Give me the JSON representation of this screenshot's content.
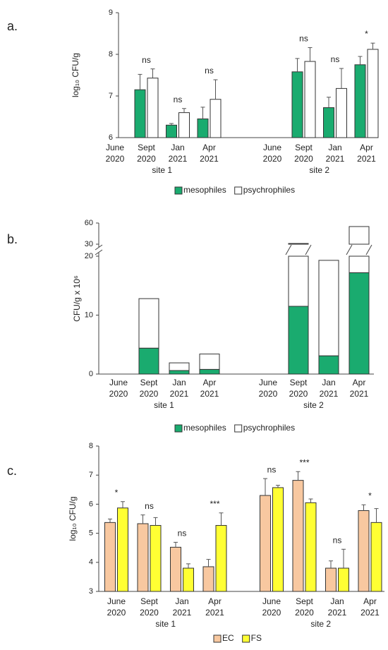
{
  "chart_data": [
    {
      "type": "bar",
      "label": "a.",
      "ylabel": "log₁₀ CFU/g",
      "categories": [
        [
          "June",
          "2020"
        ],
        [
          "Sept",
          "2020"
        ],
        [
          "Jan",
          "2021"
        ],
        [
          "Apr",
          "2021"
        ],
        [
          "June",
          "2020"
        ],
        [
          "Sept",
          "2020"
        ],
        [
          "Jan",
          "2021"
        ],
        [
          "Apr",
          "2021"
        ]
      ],
      "groups": [
        "site 1",
        "site 2"
      ],
      "series": [
        {
          "name": "mesophiles",
          "color": "#1aab6f",
          "values": [
            null,
            7.15,
            6.3,
            6.45,
            null,
            7.58,
            6.72,
            7.75
          ],
          "errors": [
            null,
            0.37,
            0.04,
            0.28,
            null,
            0.32,
            0.25,
            0.2
          ]
        },
        {
          "name": "psychrophiles",
          "color": "#ffffff",
          "values": [
            null,
            7.43,
            6.6,
            6.92,
            null,
            7.83,
            7.18,
            8.12
          ],
          "errors": [
            null,
            0.22,
            0.1,
            0.47,
            null,
            0.33,
            0.48,
            0.15
          ]
        }
      ],
      "annotations": [
        null,
        "ns",
        "ns",
        "ns",
        null,
        "ns",
        "ns",
        "*"
      ],
      "ylim": [
        6,
        9
      ],
      "yticks": [
        6,
        7,
        8,
        9
      ]
    },
    {
      "type": "bar",
      "stacked": true,
      "label": "b.",
      "ylabel": "CFU/g x 10⁶",
      "categories": [
        [
          "June",
          "2020"
        ],
        [
          "Sept",
          "2020"
        ],
        [
          "Jan",
          "2021"
        ],
        [
          "Apr",
          "2021"
        ],
        [
          "June",
          "2020"
        ],
        [
          "Sept",
          "2020"
        ],
        [
          "Jan",
          "2021"
        ],
        [
          "Apr",
          "2021"
        ]
      ],
      "groups": [
        "site 1",
        "site 2"
      ],
      "series": [
        {
          "name": "mesophiles",
          "color": "#1aab6f",
          "values": [
            null,
            4.4,
            0.6,
            0.8,
            null,
            11.5,
            3.1,
            17.2
          ]
        },
        {
          "name": "psychrophiles",
          "color": "#ffffff",
          "values": [
            null,
            8.4,
            1.3,
            2.6,
            null,
            19.5,
            16.2,
            37.8
          ]
        }
      ],
      "ylim": [
        0,
        60
      ],
      "ybreak": [
        20,
        30
      ],
      "yticks": [
        0,
        10,
        20,
        30,
        60
      ]
    },
    {
      "type": "bar",
      "label": "c.",
      "ylabel": "log₁₀ CFU/g",
      "categories": [
        [
          "June",
          "2020"
        ],
        [
          "Sept",
          "2020"
        ],
        [
          "Jan",
          "2021"
        ],
        [
          "Apr",
          "2021"
        ],
        [
          "June",
          "2020"
        ],
        [
          "Sept",
          "2020"
        ],
        [
          "Jan",
          "2021"
        ],
        [
          "Apr",
          "2021"
        ]
      ],
      "groups": [
        "site 1",
        "site 2"
      ],
      "series": [
        {
          "name": "EC",
          "color": "#f8c8a0",
          "values": [
            5.37,
            5.33,
            4.52,
            3.85,
            6.3,
            6.82,
            3.8,
            5.78
          ],
          "errors": [
            0.12,
            0.3,
            0.17,
            0.25,
            0.58,
            0.3,
            0.25,
            0.2
          ]
        },
        {
          "name": "FS",
          "color": "#ffff33",
          "values": [
            5.87,
            5.27,
            3.8,
            5.27,
            6.57,
            6.05,
            3.8,
            5.37
          ],
          "errors": [
            0.22,
            0.27,
            0.15,
            0.43,
            0.08,
            0.13,
            0.65,
            0.48
          ]
        }
      ],
      "annotations": [
        "*",
        "ns",
        "ns",
        "***",
        "ns",
        "***",
        "ns",
        "*"
      ],
      "ylim": [
        3,
        8
      ],
      "yticks": [
        3,
        4,
        5,
        6,
        7,
        8
      ]
    }
  ]
}
